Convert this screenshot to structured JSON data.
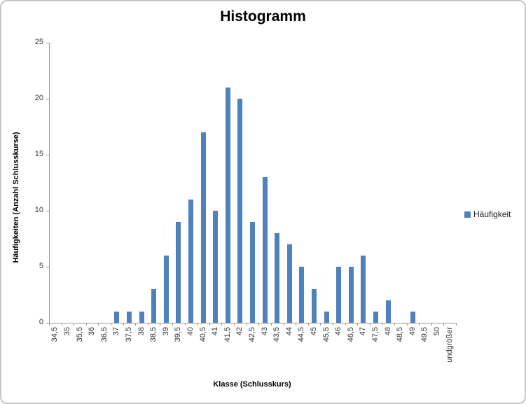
{
  "chart": {
    "title": "Histogramm",
    "x_axis_title": "Klasse (Schlusskurs)",
    "y_axis_title": "Häufigkeiten (Anzahl Schlusskurse)",
    "legend_label": "Häufigkeit"
  },
  "chart_data": {
    "type": "bar",
    "title": "Histogramm",
    "xlabel": "Klasse (Schlusskurs)",
    "ylabel": "Häufigkeiten (Anzahl Schlusskurse)",
    "legend": "Häufigkeit",
    "legend_position": "right",
    "grid": false,
    "categories": [
      "34,5",
      "35",
      "35,5",
      "36",
      "36,5",
      "37",
      "37,5",
      "38",
      "38,5",
      "39",
      "39,5",
      "40",
      "40,5",
      "41",
      "41,5",
      "42",
      "42,5",
      "43",
      "43,5",
      "44",
      "44,5",
      "45",
      "45,5",
      "46",
      "46,5",
      "47",
      "47,5",
      "48",
      "48,5",
      "49",
      "49,5",
      "50",
      "undgrößer"
    ],
    "values": [
      0,
      0,
      0,
      0,
      0,
      1,
      1,
      1,
      3,
      6,
      9,
      11,
      17,
      10,
      21,
      20,
      9,
      13,
      8,
      7,
      5,
      3,
      1,
      5,
      5,
      6,
      1,
      2,
      0,
      1,
      0,
      0,
      0
    ],
    "ylim": [
      0,
      25
    ],
    "yticks": [
      0,
      5,
      10,
      15,
      20,
      25
    ],
    "colors": {
      "bar": "#4F81BD",
      "axis": "#999999",
      "tick_text": "#333333",
      "title_text": "#000000",
      "border": "#C6C6C6"
    }
  }
}
